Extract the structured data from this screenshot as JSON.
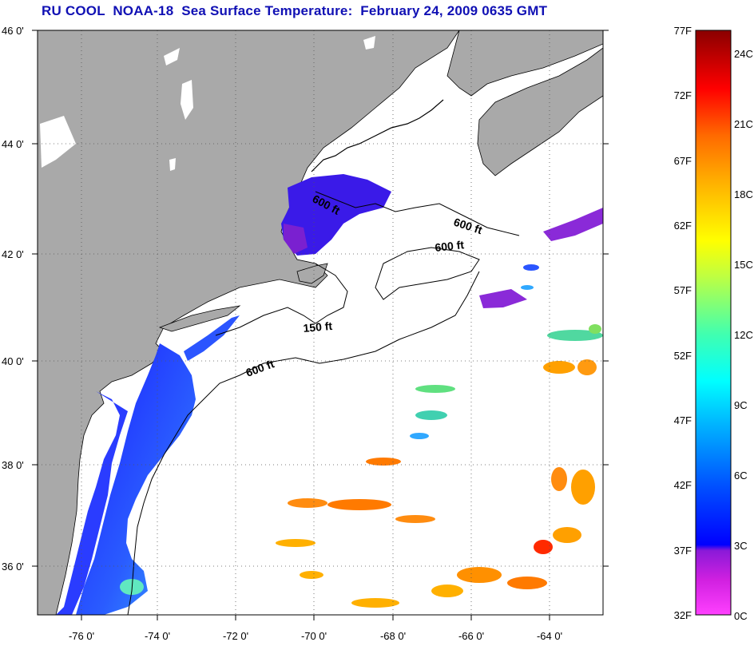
{
  "title": "RU COOL  NOAA-18  Sea Surface Temperature:  February 24, 2009 0635 GMT",
  "map": {
    "lat_labels": [
      "46 0'",
      "44 0'",
      "42 0'",
      "40 0'",
      "38 0'",
      "36 0'"
    ],
    "lon_labels": [
      "-76 0'",
      "-74 0'",
      "-72 0'",
      "-70 0'",
      "-68 0'",
      "-66 0'",
      "-64 0'"
    ],
    "contour_labels": [
      "600 ft",
      "600 ft",
      "600 ft",
      "150 ft",
      "600 ft"
    ],
    "colors": {
      "land": "#a9a9a9",
      "ocean": "#ffffff",
      "coast": "#000000"
    }
  },
  "colorbar": {
    "f_labels": [
      "77F",
      "72F",
      "67F",
      "62F",
      "57F",
      "52F",
      "47F",
      "42F",
      "37F",
      "32F"
    ],
    "c_labels": [
      "24C",
      "21C",
      "18C",
      "15C",
      "12C",
      "9C",
      "6C",
      "3C",
      "0C"
    ],
    "range_f": [
      32,
      77
    ],
    "range_c": [
      0,
      25
    ]
  }
}
